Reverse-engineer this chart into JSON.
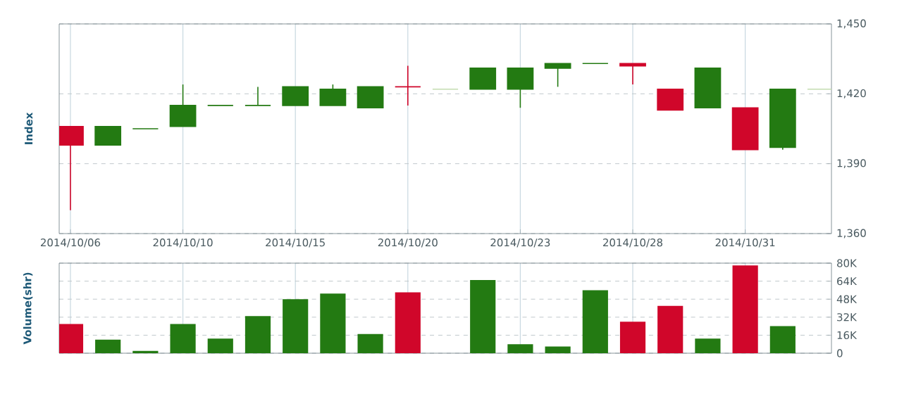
{
  "chart_data": [
    {
      "type": "candlestick",
      "ylabel": "Index",
      "categories": [
        "2014/10/06",
        null,
        null,
        "2014/10/10",
        null,
        null,
        "2014/10/15",
        null,
        null,
        "2014/10/20",
        null,
        null,
        "2014/10/23",
        null,
        null,
        "2014/10/28",
        null,
        null,
        "2014/10/31",
        null,
        null
      ],
      "ohlc": [
        [
          1406,
          1406,
          1370,
          1398
        ],
        [
          1398,
          1406,
          1398,
          1406
        ],
        [
          1405,
          1405,
          1405,
          1405
        ],
        [
          1406,
          1424,
          1406,
          1415
        ],
        [
          1415,
          1415,
          1415,
          1415
        ],
        [
          1415,
          1423,
          1415,
          1415
        ],
        [
          1415,
          1423,
          1415,
          1423
        ],
        [
          1415,
          1424,
          1415,
          1422
        ],
        [
          1414,
          1423,
          1414,
          1423
        ],
        [
          1423,
          1432,
          1415,
          1423
        ],
        [
          1422,
          1422,
          1422,
          1422
        ],
        [
          1422,
          1431,
          1422,
          1431
        ],
        [
          1422,
          1431,
          1414,
          1431
        ],
        [
          1431,
          1433,
          1423,
          1433
        ],
        [
          1433,
          1433,
          1433,
          1433
        ],
        [
          1433,
          1433,
          1424,
          1432
        ],
        [
          1422,
          1422,
          1413,
          1413
        ],
        [
          1414,
          1431,
          1414,
          1431
        ],
        [
          1414,
          1414,
          1396,
          1396
        ],
        [
          1397,
          1422,
          1396,
          1422
        ],
        [
          1422,
          1422,
          1422,
          1422
        ]
      ],
      "colors": [
        "#d0062a",
        "#237a12",
        "#237a12",
        "#237a12",
        "#237a12",
        "#237a12",
        "#237a12",
        "#237a12",
        "#237a12",
        "#d0062a",
        "#c4dcb0",
        "#237a12",
        "#237a12",
        "#237a12",
        "#237a12",
        "#d0062a",
        "#d0062a",
        "#237a12",
        "#d0062a",
        "#237a12",
        "#c4dcb0"
      ],
      "ylim": [
        1360,
        1450
      ],
      "yticks": [
        {
          "value": 1360,
          "label": "1,360"
        },
        {
          "value": 1390,
          "label": "1,390"
        },
        {
          "value": 1420,
          "label": "1,420"
        },
        {
          "value": 1450,
          "label": "1,450"
        }
      ],
      "grid": true
    },
    {
      "type": "bar",
      "ylabel": "Volume(shr)",
      "categories": [
        "2014/10/06",
        null,
        null,
        "2014/10/10",
        null,
        null,
        "2014/10/15",
        null,
        null,
        "2014/10/20",
        null,
        null,
        "2014/10/23",
        null,
        null,
        "2014/10/28",
        null,
        null,
        "2014/10/31",
        null,
        null
      ],
      "values": [
        26000,
        12000,
        2000,
        26000,
        13000,
        33000,
        48000,
        53000,
        17000,
        54000,
        null,
        65000,
        8000,
        6000,
        56000,
        28000,
        42000,
        13000,
        78000,
        24000,
        null
      ],
      "colors": [
        "#d0062a",
        "#237a12",
        "#237a12",
        "#237a12",
        "#237a12",
        "#237a12",
        "#237a12",
        "#237a12",
        "#237a12",
        "#d0062a",
        "#c8cccc",
        "#237a12",
        "#237a12",
        "#237a12",
        "#237a12",
        "#d0062a",
        "#d0062a",
        "#237a12",
        "#d0062a",
        "#237a12",
        "#c8cccc"
      ],
      "ylim": [
        0,
        80000
      ],
      "yticks": [
        0,
        {
          "value": 16000,
          "label": "16K"
        },
        {
          "value": 32000,
          "label": "32K"
        },
        {
          "value": 48000,
          "label": "48K"
        },
        {
          "value": 64000,
          "label": "64K"
        },
        {
          "value": 80000,
          "label": "80K"
        }
      ],
      "grid": true,
      "tick_labels": "y"
    }
  ]
}
